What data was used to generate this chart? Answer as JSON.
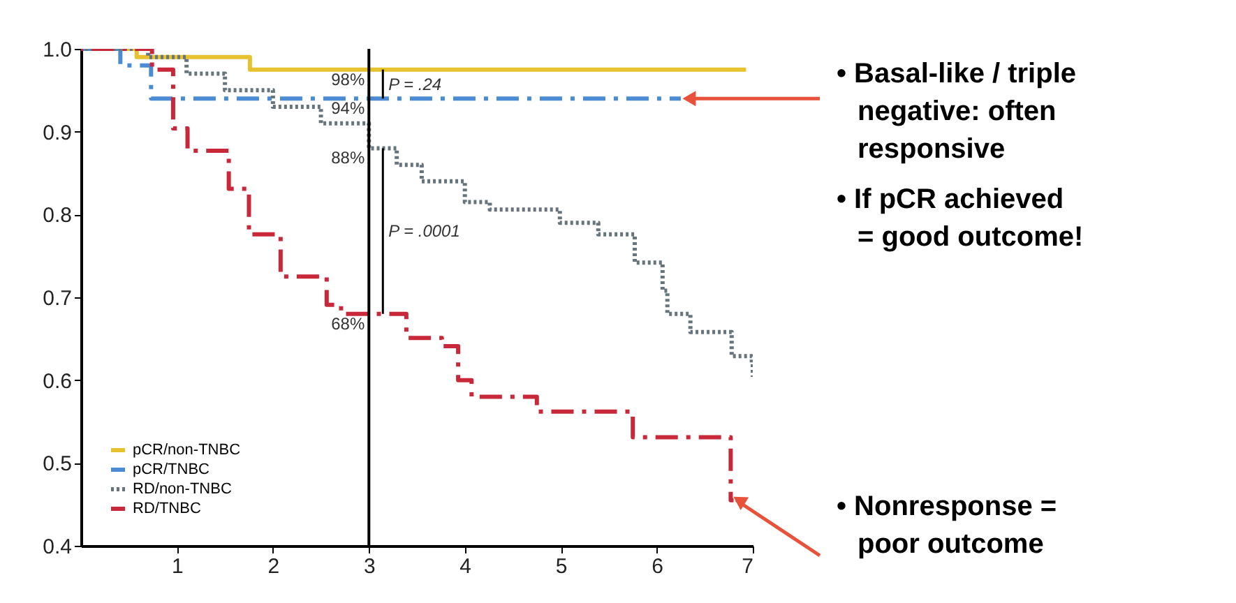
{
  "chart_data": {
    "type": "step",
    "xlim": [
      0,
      7
    ],
    "xticks": [
      1,
      2,
      3,
      4,
      5,
      6,
      7
    ],
    "ylim": [
      0.4,
      1.0
    ],
    "yticks": [
      0.4,
      0.5,
      0.6,
      0.7,
      0.8,
      0.9,
      {
        "value": 1,
        "label": "1.0"
      }
    ],
    "grid": false,
    "legend": "bottom left",
    "series": [
      {
        "name": "pCR/non-TNBC",
        "color": "#e6c22e",
        "line_style": "solid",
        "x": [
          0,
          0.58,
          1.76,
          6.93
        ],
        "values": [
          1.0,
          0.99,
          0.975,
          0.975
        ]
      },
      {
        "name": "pCR/TNBC",
        "color": "#4a8bd4",
        "line_style": "dashed",
        "x": [
          0,
          0.41,
          0.73,
          6.25
        ],
        "values": [
          1.0,
          0.98,
          0.94,
          0.94
        ]
      },
      {
        "name": "RD/non-TNBC",
        "color": "#66757c",
        "line_style": "dotted",
        "x": [
          0,
          0.7,
          1.1,
          1.5,
          2.0,
          2.5,
          3.0,
          3.29,
          3.55,
          4.0,
          4.26,
          4.99,
          5.39,
          5.77,
          6.06,
          6.11,
          6.35,
          6.78,
          6.99,
          7.0
        ],
        "values": [
          1.0,
          0.99,
          0.97,
          0.95,
          0.93,
          0.91,
          0.88,
          0.86,
          0.84,
          0.815,
          0.806,
          0.79,
          0.776,
          0.742,
          0.708,
          0.68,
          0.658,
          0.629,
          0.62,
          0.604
        ]
      },
      {
        "name": "RD/TNBC",
        "color": "#c8283a",
        "line_style": "dashed",
        "x": [
          0,
          0.74,
          0.96,
          1.11,
          1.54,
          1.75,
          2.08,
          2.56,
          2.71,
          3.39,
          3.76,
          3.93,
          4.07,
          4.75,
          5.75,
          6.77,
          6.8
        ],
        "values": [
          1.0,
          0.975,
          0.904,
          0.877,
          0.831,
          0.776,
          0.725,
          0.691,
          0.68,
          0.651,
          0.641,
          0.6,
          0.58,
          0.562,
          0.531,
          0.455,
          0.455
        ]
      }
    ],
    "ref_lines": [
      {
        "axis": "x",
        "value": 3,
        "color": "#000000"
      }
    ],
    "annotations": [
      {
        "text": "98%",
        "x": 3,
        "y": 0.975
      },
      {
        "text": "94%",
        "x": 3,
        "y": 0.94
      },
      {
        "text": "88%",
        "x": 3,
        "y": 0.88
      },
      {
        "text": "68%",
        "x": 3,
        "y": 0.68
      },
      {
        "text": "P = .24",
        "x": 3,
        "y": 0.957
      },
      {
        "text": "P = .0001",
        "x": 3,
        "y": 0.78
      },
      {
        "text": "• Basal-like / triple\nnegative: often\nresponsive",
        "x": 6.25,
        "y": 0.94
      },
      "• If pCR achieved\n= good outcome!",
      {
        "text": "• Nonresponse =\npoor outcome",
        "x": 6.77,
        "y": 0.455
      }
    ]
  }
}
